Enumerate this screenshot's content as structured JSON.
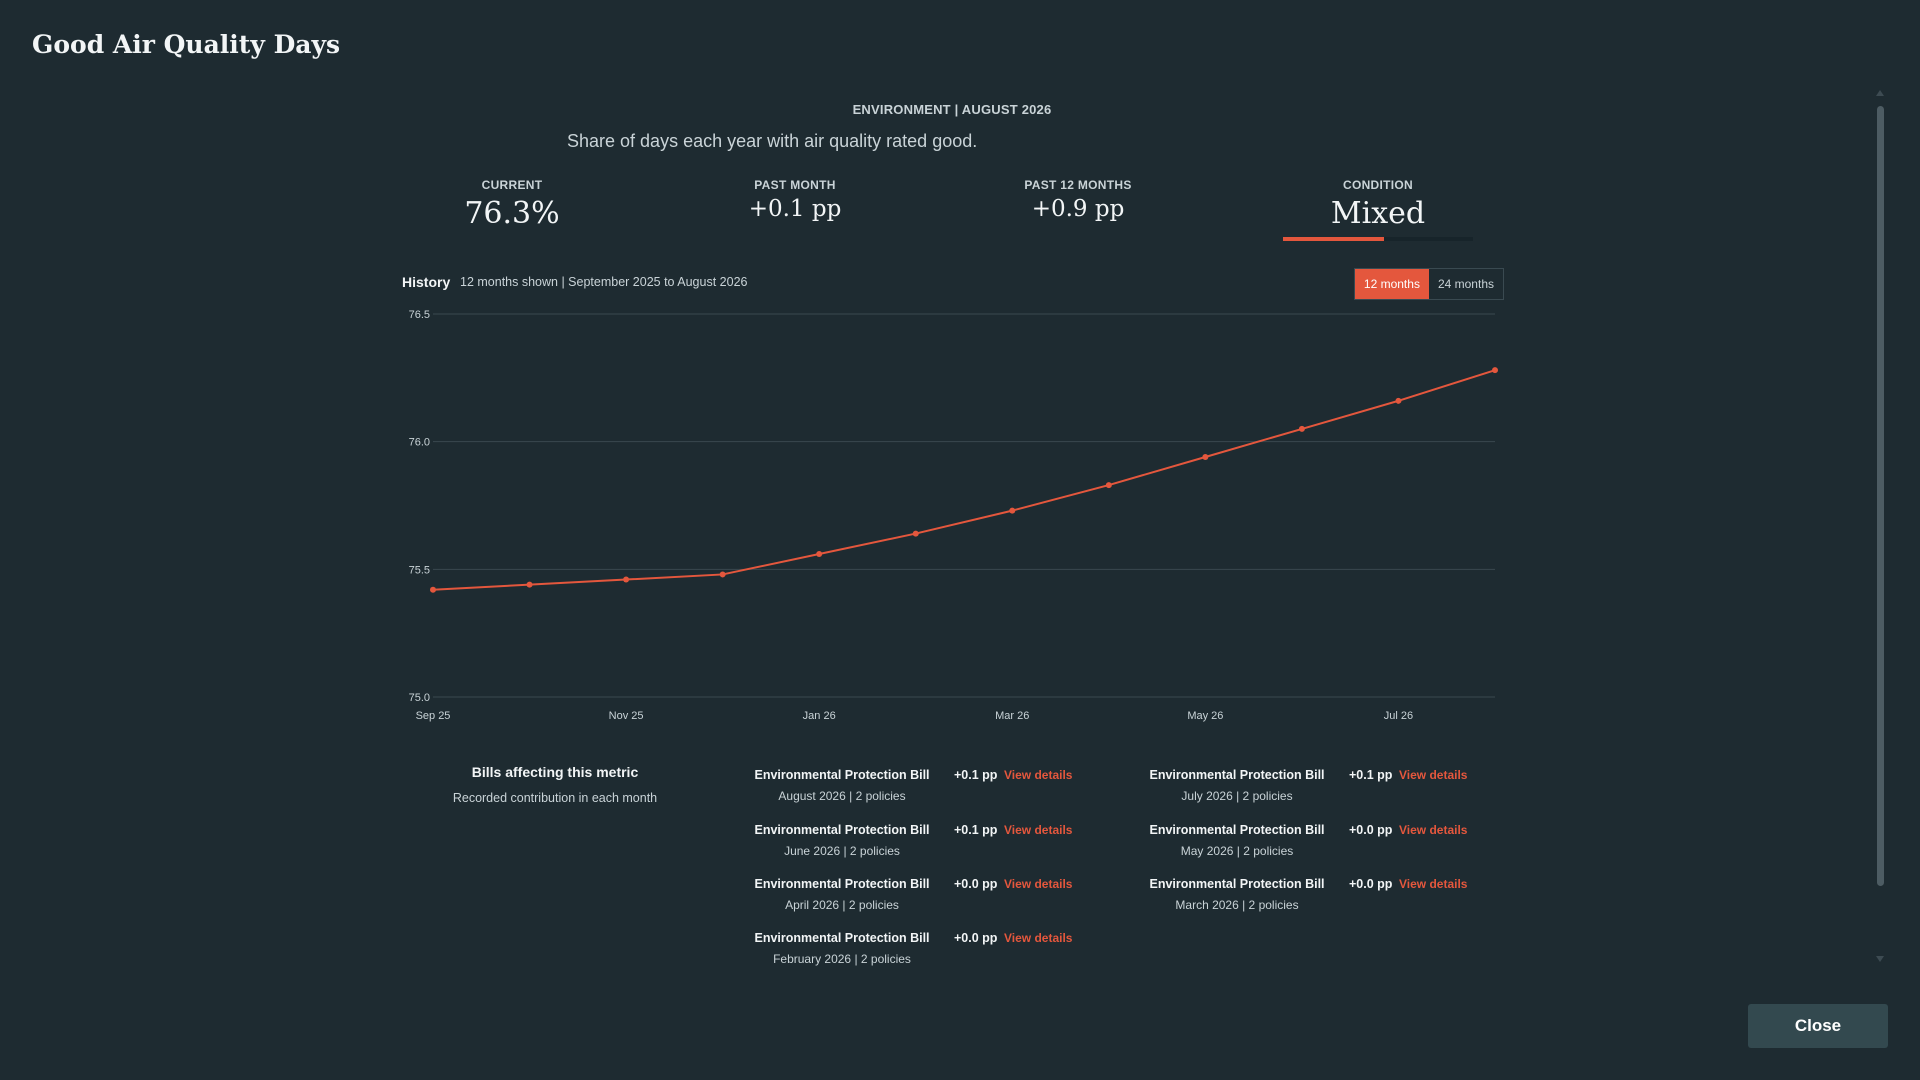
{
  "window": {
    "title": "Good Air Quality Days"
  },
  "header": {
    "eyebrow": "ENVIRONMENT | AUGUST 2026",
    "subtitle": "Share of days each year with air quality rated good."
  },
  "stats": [
    {
      "label": "CURRENT",
      "value": "76.3%"
    },
    {
      "label": "PAST MONTH",
      "value": "+0.1 pp"
    },
    {
      "label": "PAST 12 MONTHS",
      "value": "+0.9 pp"
    },
    {
      "label": "CONDITION",
      "value": "Mixed",
      "level": 0.53
    }
  ],
  "history": {
    "title": "History",
    "range": "12 months shown | September 2025 to August 2026",
    "toggle": [
      "12 months",
      "24 months"
    ],
    "active": "12 months"
  },
  "chart_data": {
    "type": "line",
    "x": [
      "Sep 25",
      "Oct 25",
      "Nov 25",
      "Dec 25",
      "Jan 26",
      "Feb 26",
      "Mar 26",
      "Apr 26",
      "May 26",
      "Jun 26",
      "Jul 26",
      "Aug 26"
    ],
    "x_tick_labels": [
      "Sep 25",
      "Nov 25",
      "Jan 26",
      "Mar 26",
      "May 26",
      "Jul 26"
    ],
    "series": [
      {
        "values": [
          75.42,
          75.44,
          75.46,
          75.48,
          75.56,
          75.64,
          75.73,
          75.83,
          75.94,
          76.05,
          76.16,
          76.28
        ],
        "color": "#e4573d"
      }
    ],
    "ylim": [
      75.0,
      76.5
    ],
    "y_ticks": [
      "75.0",
      "75.5",
      "76.0",
      "76.5"
    ],
    "grid": true,
    "legend": "none"
  },
  "bills": {
    "title": "Bills affecting this metric",
    "subtitle": "Recorded contribution in each month",
    "link_label": "View details",
    "items": [
      {
        "name": "Environmental Protection Bill",
        "meta": "August 2026 | 2 policies",
        "delta": "+0.1 pp"
      },
      {
        "name": "Environmental Protection Bill",
        "meta": "July 2026 | 2 policies",
        "delta": "+0.1 pp"
      },
      {
        "name": "Environmental Protection Bill",
        "meta": "June 2026 | 2 policies",
        "delta": "+0.1 pp"
      },
      {
        "name": "Environmental Protection Bill",
        "meta": "May 2026 | 2 policies",
        "delta": "+0.0 pp"
      },
      {
        "name": "Environmental Protection Bill",
        "meta": "April 2026 | 2 policies",
        "delta": "+0.0 pp"
      },
      {
        "name": "Environmental Protection Bill",
        "meta": "March 2026 | 2 policies",
        "delta": "+0.0 pp"
      },
      {
        "name": "Environmental Protection Bill",
        "meta": "February 2026 | 2 policies",
        "delta": "+0.0 pp"
      }
    ]
  },
  "footer": {
    "close_label": "Close"
  },
  "colors": {
    "accent": "#e4573d",
    "background": "#1e2b31",
    "button": "#33494f"
  }
}
